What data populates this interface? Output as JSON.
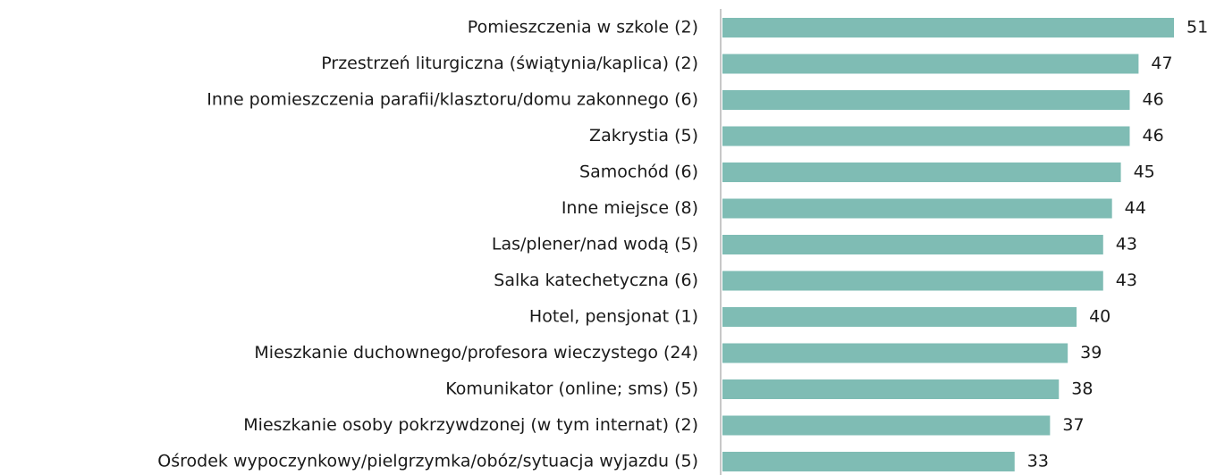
{
  "chart_data": {
    "type": "bar",
    "orientation": "horizontal",
    "categories": [
      "Pomieszczenia w szkole (2)",
      "Przestrzeń liturgiczna (świątynia/kaplica) (2)",
      "Inne pomieszczenia parafii/klasztoru/domu zakonnego (6)",
      "Zakrystia (5)",
      "Samochód (6)",
      "Inne miejsce (8)",
      "Las/plener/nad wodą (5)",
      "Salka katechetyczna (6)",
      "Hotel, pensjonat (1)",
      "Mieszkanie duchownego/profesora wieczystego (24)",
      "Komunikator (online; sms) (5)",
      "Mieszkanie osoby pokrzywdzonej (w tym internat) (2)",
      "Ośrodek wypoczynkowy/pielgrzymka/obóz/sytuacja wyjazdu (5)"
    ],
    "values": [
      51,
      47,
      46,
      46,
      45,
      44,
      43,
      43,
      40,
      39,
      38,
      37,
      33
    ],
    "color": "#7fbcb4"
  }
}
